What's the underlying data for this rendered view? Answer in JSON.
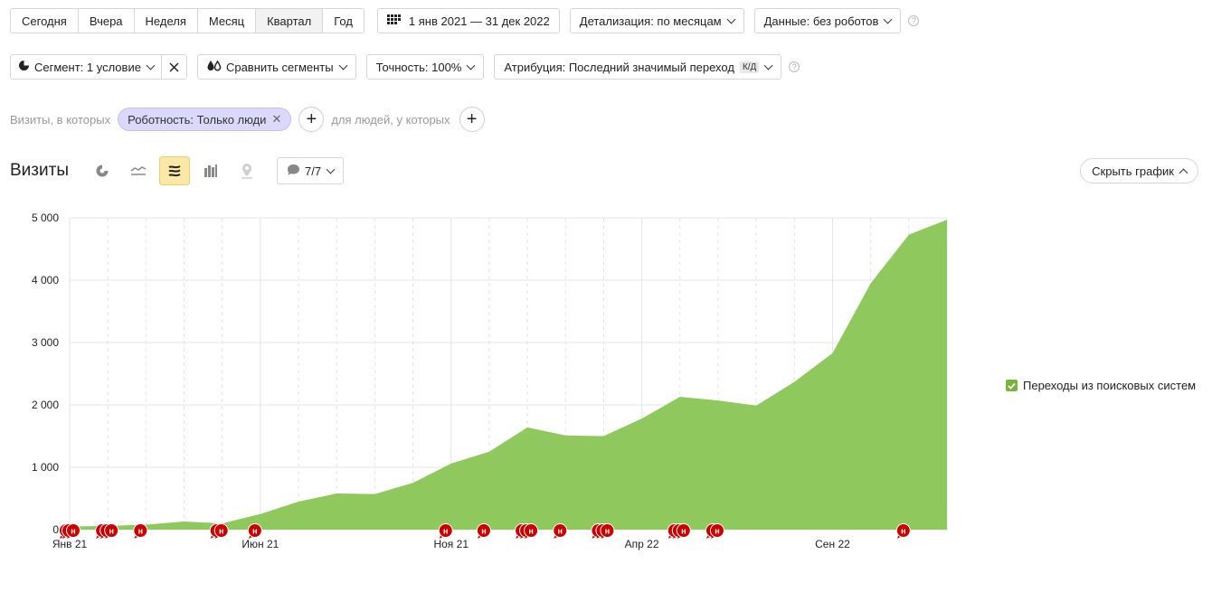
{
  "periods": [
    "Сегодня",
    "Вчера",
    "Неделя",
    "Месяц",
    "Квартал",
    "Год"
  ],
  "active_period": "Квартал",
  "date_range": "1 янв 2021 — 31 дек 2022",
  "detail": "Детализация: по месяцам",
  "data_filter": "Данные: без роботов",
  "segment": "Сегмент: 1 условие",
  "compare": "Сравнить сегменты",
  "accuracy": "Точность: 100%",
  "attribution": "Атрибуция: Последний значимый переход",
  "attribution_badge": "К/Д",
  "filter": {
    "prefix": "Визиты, в которых",
    "chip": "Роботность: Только люди",
    "suffix": "для людей, у которых"
  },
  "report": {
    "title": "Визиты",
    "series_counter": "7/7",
    "hide_chart": "Скрыть график"
  },
  "icons": {
    "calendar": "calendar-grid-icon",
    "chart_types": [
      "pie-chart-icon",
      "line-chart-icon",
      "area-chart-icon",
      "bar-chart-icon",
      "map-chart-icon"
    ],
    "annotations": "comment-bubble-icon"
  },
  "chart_data": {
    "type": "area",
    "x_tick_labels": [
      "Янв 21",
      "Июн 21",
      "Ноя 21",
      "Апр 22",
      "Сен 22"
    ],
    "y_tick_labels": [
      "0",
      "1 000",
      "2 000",
      "3 000",
      "4 000",
      "5 000"
    ],
    "ylim": [
      0,
      5000
    ],
    "x": [
      "2021-01",
      "2021-02",
      "2021-03",
      "2021-04",
      "2021-05",
      "2021-06",
      "2021-07",
      "2021-08",
      "2021-09",
      "2021-10",
      "2021-11",
      "2021-12",
      "2022-01",
      "2022-02",
      "2022-03",
      "2022-04",
      "2022-05",
      "2022-06",
      "2022-07",
      "2022-08",
      "2022-09",
      "2022-10",
      "2022-11",
      "2022-12"
    ],
    "series": [
      {
        "name": "Переходы из поисковых систем",
        "color": "#8fc95e",
        "values": [
          50,
          60,
          80,
          130,
          100,
          250,
          450,
          580,
          570,
          750,
          1060,
          1250,
          1640,
          1510,
          1500,
          1780,
          2130,
          2070,
          1990,
          2370,
          2830,
          3950,
          4730,
          4970
        ]
      }
    ],
    "annotation_color": "#cc0000",
    "annotation_label": "н",
    "annotation_months": [
      0,
      0,
      0,
      1,
      1,
      1,
      2,
      4,
      4,
      5,
      10,
      11,
      12,
      12,
      12,
      13,
      14,
      14,
      14,
      16,
      16,
      16,
      17,
      17,
      22
    ],
    "grid": true,
    "legend": "right"
  }
}
